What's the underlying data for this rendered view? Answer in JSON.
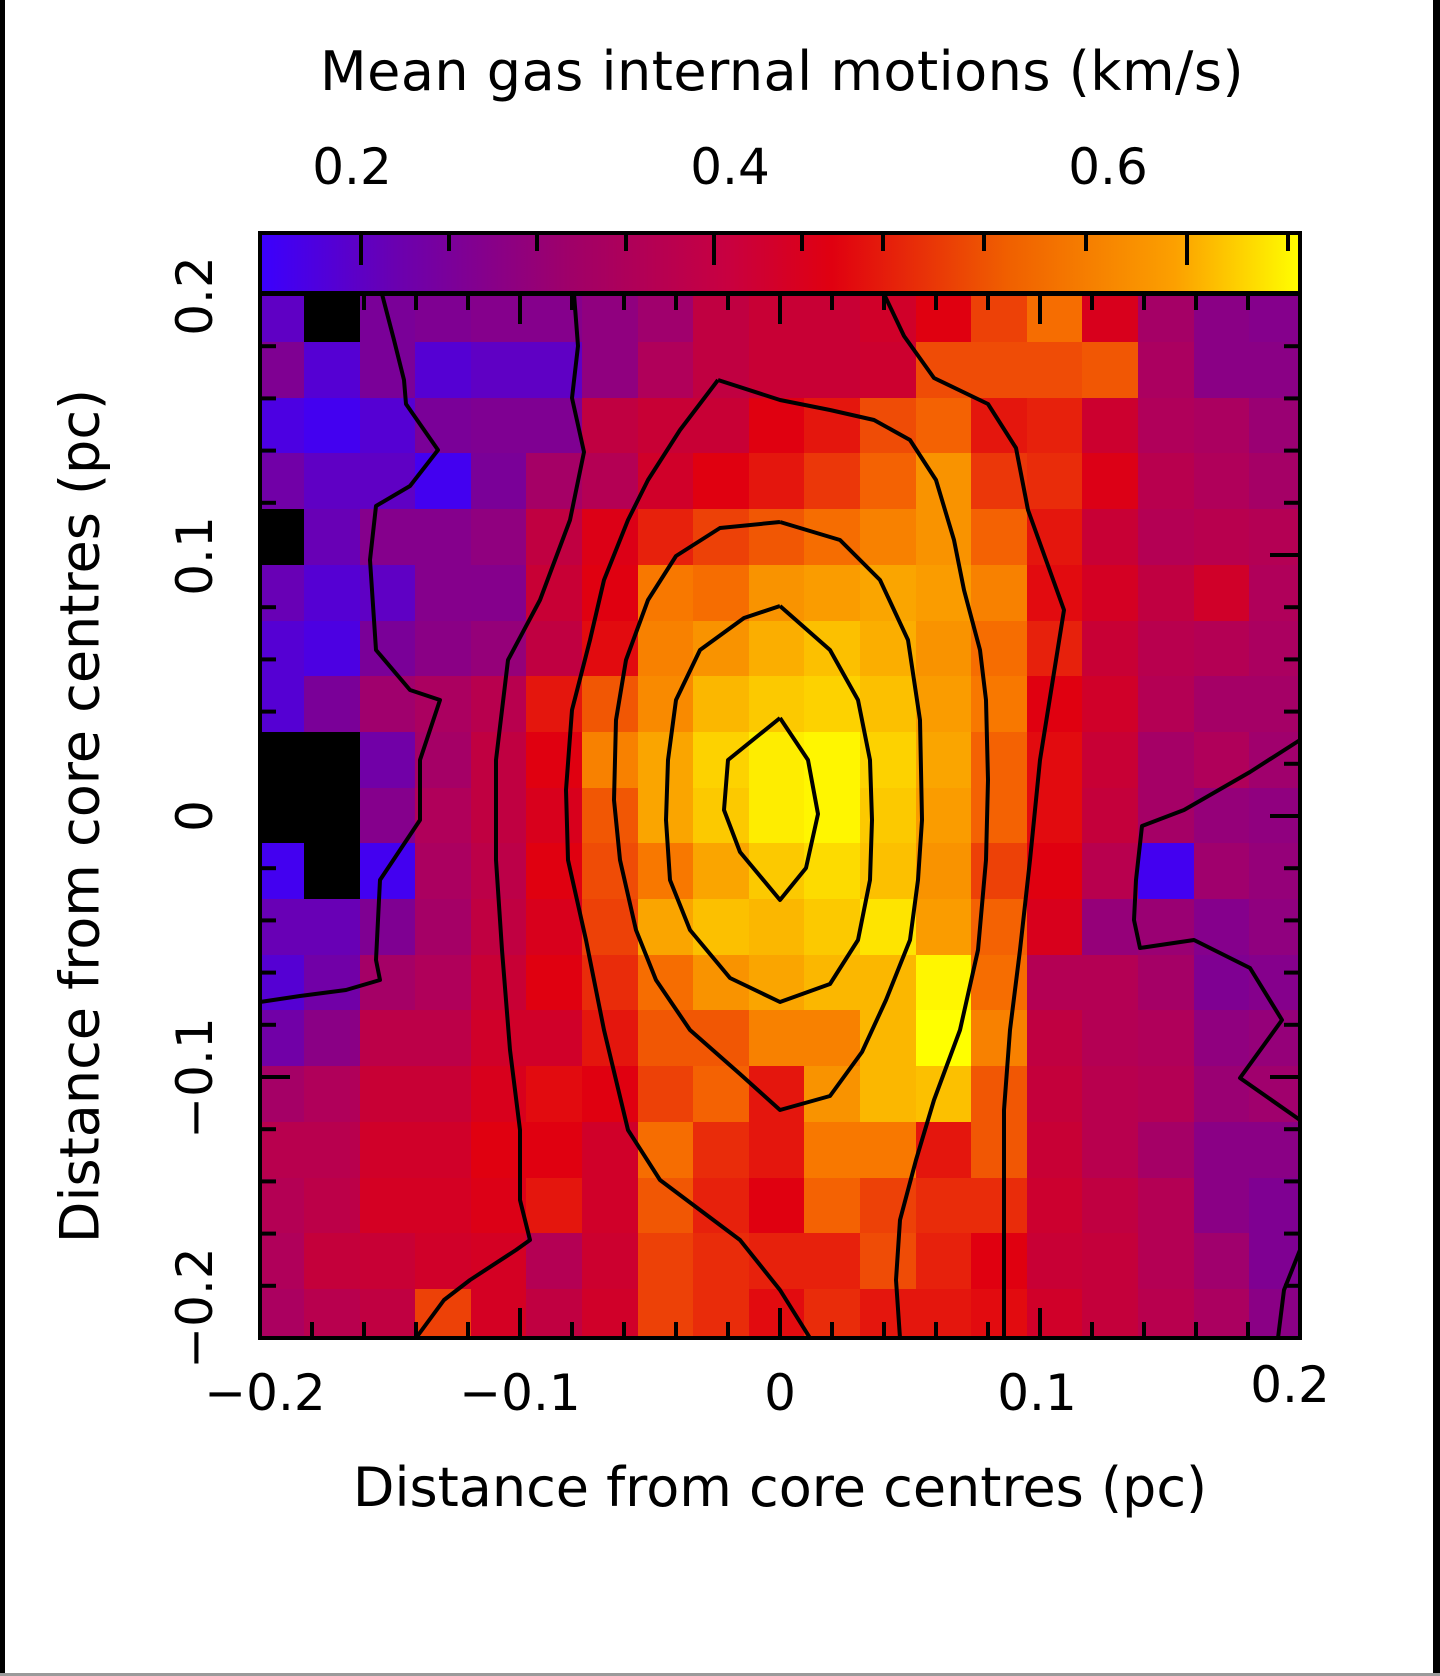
{
  "chart_data": {
    "type": "heatmap",
    "title": "",
    "colorbar": {
      "label": "Mean gas internal motions (km/s)",
      "position": "top",
      "ticks": [
        {
          "label": "0.2",
          "value": 0.2
        },
        {
          "label": "0.4",
          "value": 0.4
        },
        {
          "label": "0.6",
          "value": 0.6
        }
      ],
      "range": [
        0.15,
        0.7
      ],
      "colormap": "blue-purple-red-orange-yellow",
      "stops": [
        {
          "v": 0.15,
          "color": "#3a00ff"
        },
        {
          "v": 0.22,
          "color": "#7a0098"
        },
        {
          "v": 0.32,
          "color": "#b0005a"
        },
        {
          "v": 0.44,
          "color": "#e00010"
        },
        {
          "v": 0.55,
          "color": "#f87800"
        },
        {
          "v": 0.7,
          "color": "#ffff00"
        }
      ]
    },
    "xlabel": "Distance from core centres (pc)",
    "ylabel": "Distance from core centres (pc)",
    "xlim": [
      -0.2,
      0.2
    ],
    "ylim": [
      -0.2,
      0.2
    ],
    "x_ticks": [
      {
        "label": "−0.2",
        "value": -0.2
      },
      {
        "label": "−0.1",
        "value": -0.1
      },
      {
        "label": "0",
        "value": 0
      },
      {
        "label": "0.1",
        "value": 0.1
      },
      {
        "label": "0.2",
        "value": 0.2
      }
    ],
    "y_ticks": [
      {
        "label": "0.2",
        "value": 0.2
      },
      {
        "label": "0.1",
        "value": 0.1
      },
      {
        "label": "0",
        "value": 0
      },
      {
        "label": "−0.1",
        "value": -0.1
      },
      {
        "label": "−0.2",
        "value": -0.2
      }
    ],
    "grid": false,
    "legend": "none",
    "grid_size": [
      19,
      19
    ],
    "note": "values in km/s, rows top (y=+0.2) to bottom (y=-0.2), columns left (x=-0.2) to right (x=+0.2); null = no data (black)",
    "values": [
      [
        0.19,
        null,
        0.22,
        0.23,
        0.24,
        0.24,
        0.26,
        0.29,
        0.36,
        0.38,
        0.38,
        0.4,
        0.44,
        0.5,
        0.54,
        0.42,
        0.3,
        0.25,
        0.24
      ],
      [
        0.23,
        0.18,
        0.22,
        0.18,
        0.19,
        0.19,
        0.26,
        0.32,
        0.36,
        0.38,
        0.38,
        0.39,
        0.51,
        0.51,
        0.51,
        0.52,
        0.31,
        0.25,
        0.25
      ],
      [
        0.17,
        0.16,
        0.18,
        0.22,
        0.23,
        0.23,
        0.36,
        0.38,
        0.38,
        0.44,
        0.46,
        0.51,
        0.53,
        0.46,
        0.47,
        0.39,
        0.32,
        0.31,
        0.28
      ],
      [
        0.21,
        0.19,
        0.19,
        0.16,
        0.22,
        0.3,
        0.33,
        0.4,
        0.44,
        0.46,
        0.49,
        0.53,
        0.58,
        0.49,
        0.48,
        0.43,
        0.34,
        0.32,
        0.3
      ],
      [
        null,
        0.2,
        0.24,
        0.24,
        0.26,
        0.36,
        0.43,
        0.47,
        0.5,
        0.52,
        0.54,
        0.56,
        0.58,
        0.53,
        0.46,
        0.38,
        0.33,
        0.34,
        0.33
      ],
      [
        0.2,
        0.18,
        0.19,
        0.24,
        0.24,
        0.38,
        0.44,
        0.55,
        0.54,
        0.58,
        0.59,
        0.6,
        0.59,
        0.56,
        0.45,
        0.41,
        0.36,
        0.4,
        0.32
      ],
      [
        0.18,
        0.17,
        0.22,
        0.25,
        0.27,
        0.36,
        0.45,
        0.56,
        0.58,
        0.61,
        0.63,
        0.61,
        0.58,
        0.54,
        0.47,
        0.38,
        0.34,
        0.33,
        0.31
      ],
      [
        0.18,
        0.22,
        0.29,
        0.31,
        0.34,
        0.46,
        0.52,
        0.57,
        0.62,
        0.64,
        0.65,
        0.63,
        0.59,
        0.55,
        0.44,
        0.4,
        0.33,
        0.3,
        0.3
      ],
      [
        null,
        null,
        0.21,
        0.3,
        0.36,
        0.44,
        0.56,
        0.6,
        0.65,
        0.68,
        0.69,
        0.65,
        0.6,
        0.53,
        0.45,
        0.38,
        0.3,
        0.32,
        0.29
      ],
      [
        null,
        null,
        0.24,
        0.32,
        0.36,
        0.42,
        0.52,
        0.6,
        0.64,
        0.68,
        0.69,
        0.64,
        0.59,
        0.53,
        0.45,
        0.37,
        0.3,
        0.27,
        0.26
      ],
      [
        0.16,
        null,
        0.16,
        0.31,
        0.35,
        0.44,
        0.51,
        0.55,
        0.6,
        0.64,
        0.66,
        0.63,
        0.58,
        0.5,
        0.44,
        0.34,
        0.16,
        0.29,
        0.27
      ],
      [
        0.2,
        0.2,
        0.23,
        0.3,
        0.36,
        0.42,
        0.5,
        0.6,
        0.63,
        0.62,
        0.64,
        0.67,
        0.59,
        0.53,
        0.42,
        0.27,
        0.28,
        0.24,
        0.26
      ],
      [
        0.18,
        0.21,
        0.3,
        0.32,
        0.38,
        0.44,
        0.48,
        0.54,
        0.58,
        0.6,
        0.62,
        0.62,
        0.69,
        0.54,
        0.33,
        0.33,
        0.3,
        0.23,
        0.24
      ],
      [
        0.21,
        0.25,
        0.35,
        0.35,
        0.4,
        0.4,
        0.46,
        0.52,
        0.52,
        0.56,
        0.56,
        0.62,
        0.7,
        0.56,
        0.36,
        0.33,
        0.32,
        0.26,
        0.27
      ],
      [
        0.3,
        0.32,
        0.38,
        0.38,
        0.42,
        0.45,
        0.44,
        0.5,
        0.53,
        0.46,
        0.58,
        0.62,
        0.63,
        0.52,
        0.37,
        0.34,
        0.33,
        0.28,
        0.29
      ],
      [
        0.34,
        0.34,
        0.4,
        0.4,
        0.44,
        0.44,
        0.4,
        0.54,
        0.48,
        0.46,
        0.55,
        0.55,
        0.46,
        0.52,
        0.38,
        0.34,
        0.3,
        0.25,
        0.25
      ],
      [
        0.33,
        0.35,
        0.41,
        0.41,
        0.43,
        0.46,
        0.4,
        0.52,
        0.47,
        0.44,
        0.53,
        0.5,
        0.48,
        0.48,
        0.39,
        0.36,
        0.33,
        0.25,
        0.23
      ],
      [
        0.32,
        0.37,
        0.38,
        0.4,
        0.41,
        0.33,
        0.39,
        0.5,
        0.48,
        0.47,
        0.47,
        0.51,
        0.47,
        0.44,
        0.38,
        0.37,
        0.33,
        0.29,
        0.23
      ],
      [
        0.31,
        0.34,
        0.36,
        0.5,
        0.41,
        0.36,
        0.4,
        0.5,
        0.48,
        0.45,
        0.48,
        0.46,
        0.46,
        0.45,
        0.4,
        0.37,
        0.34,
        0.31,
        0.25
      ]
    ],
    "contours": {
      "count": 7,
      "color": "#000000",
      "description": "nested closed/open contour lines centred near (0, 0.01) pc, elongated vertically"
    }
  }
}
